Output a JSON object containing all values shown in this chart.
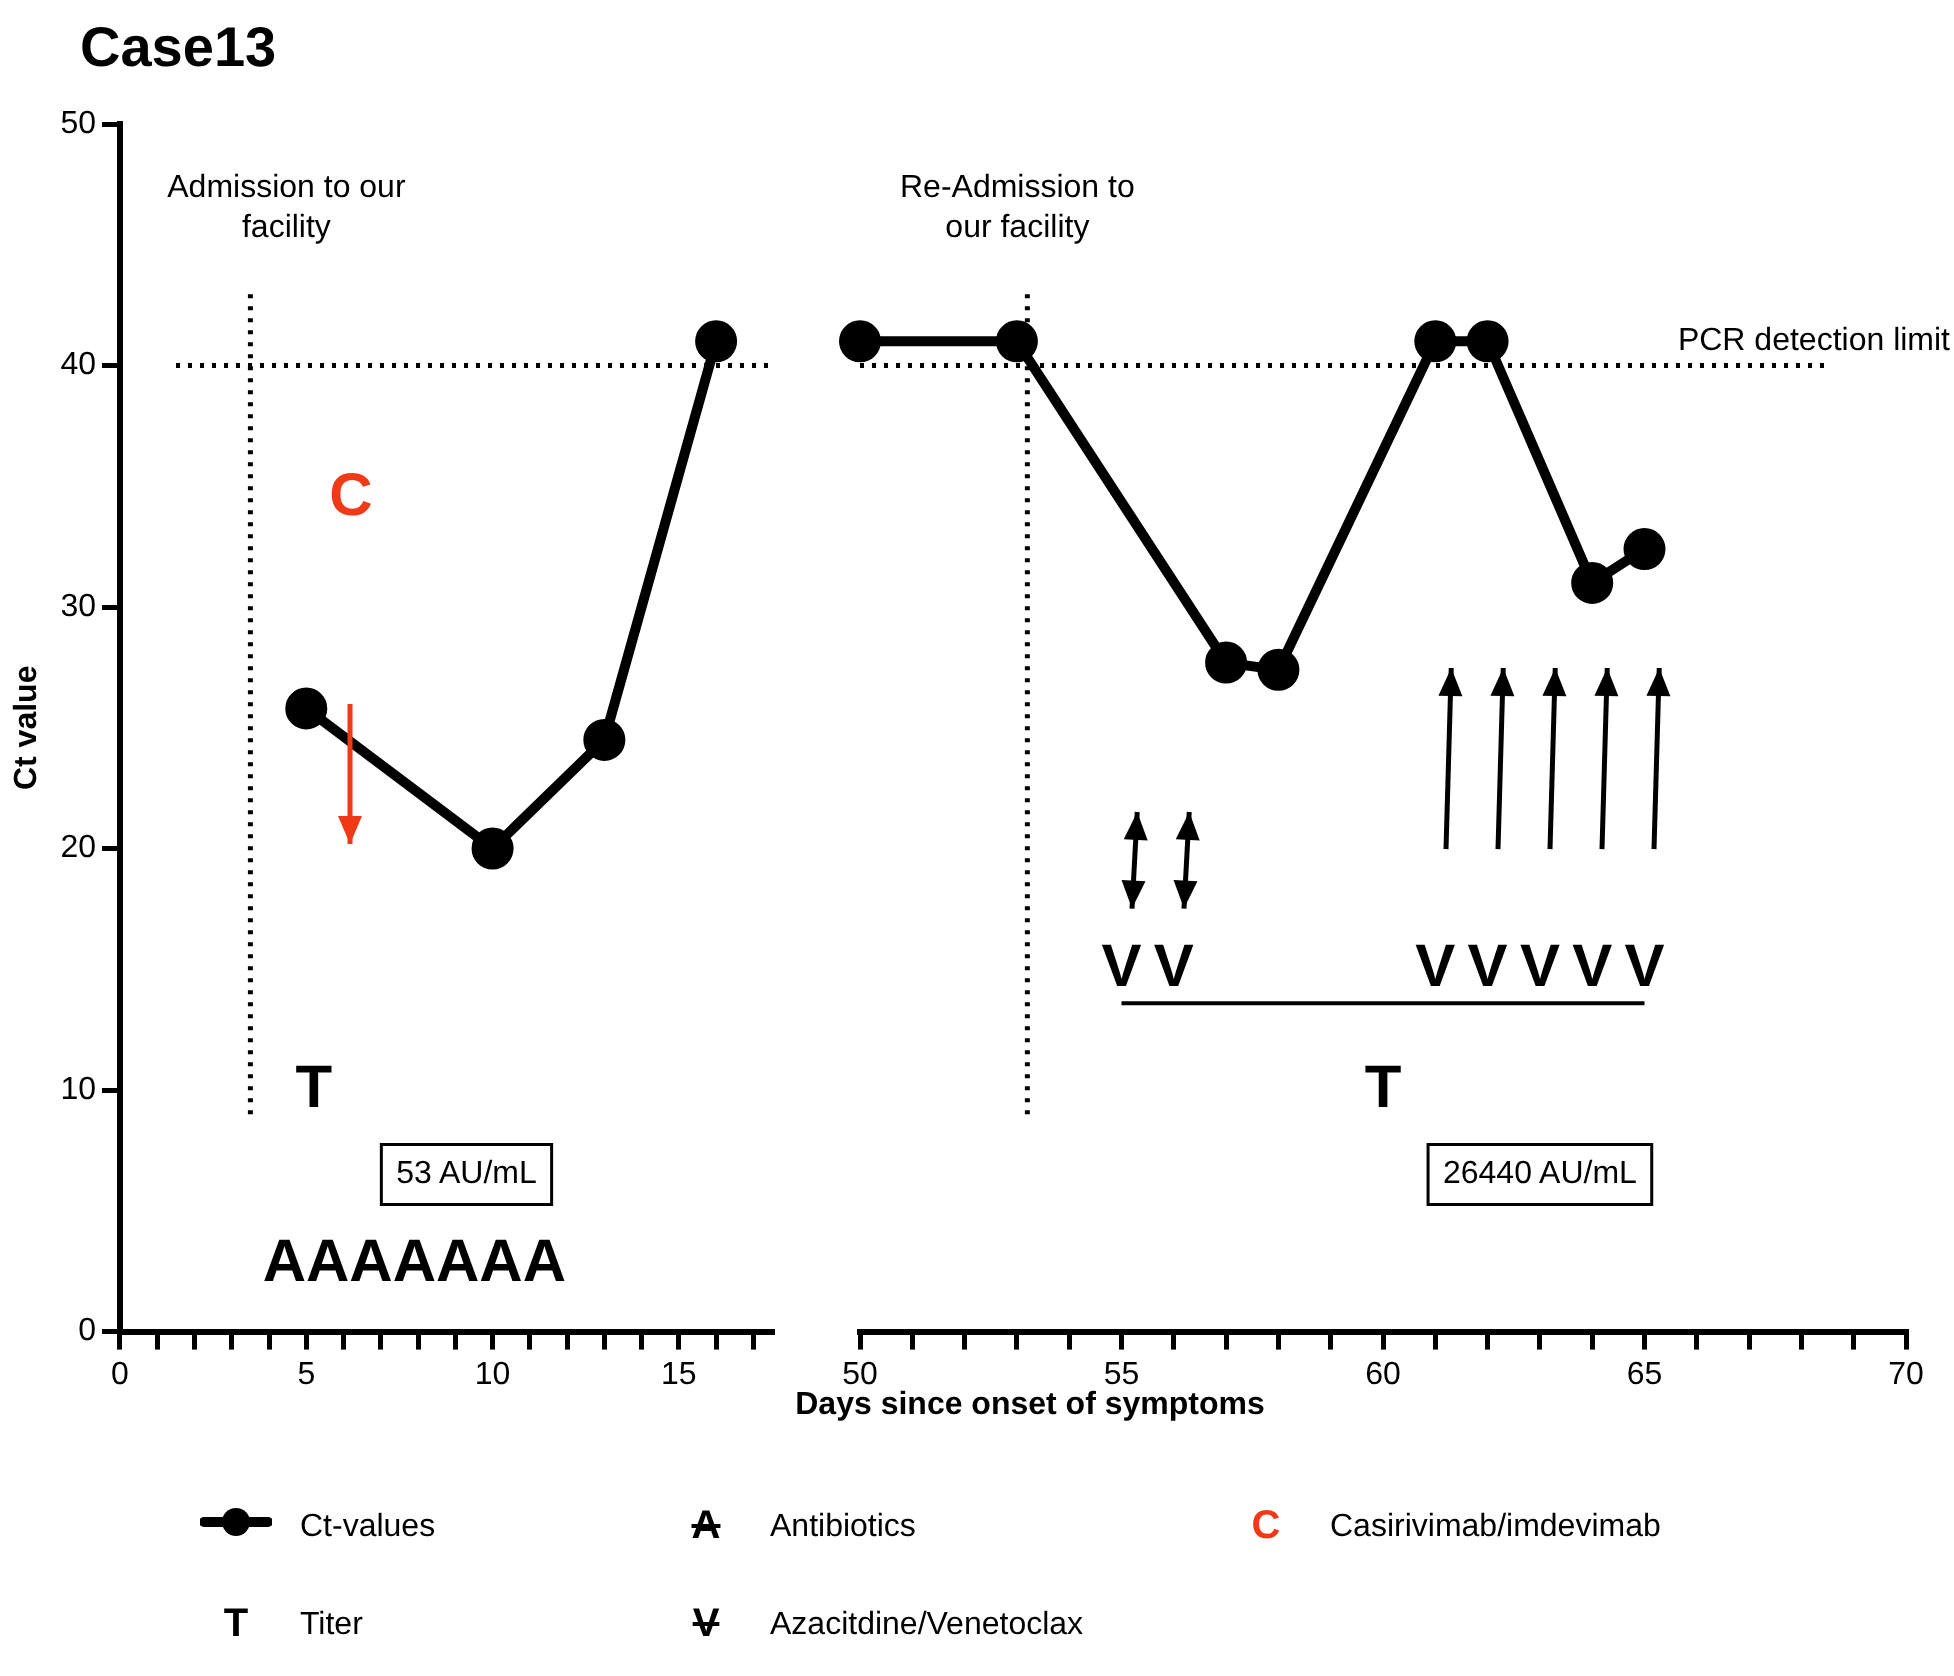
{
  "chart_data": [
    {
      "type": "line",
      "title": "Case13",
      "ylabel": "Ct value",
      "xlabel": "Days since onset of symptoms",
      "x": [
        5,
        10,
        13,
        16
      ],
      "series": [
        {
          "name": "Ct-values",
          "color": "#000000",
          "values": [
            25.8,
            20,
            24.5,
            41
          ]
        }
      ],
      "xlim": [
        0,
        17.5
      ],
      "xticks": [
        0,
        {
          "value": 1,
          "label": null
        },
        {
          "value": 2,
          "label": null
        },
        {
          "value": 3,
          "label": null
        },
        {
          "value": 4,
          "label": null
        },
        5,
        {
          "value": 6,
          "label": null
        },
        {
          "value": 7,
          "label": null
        },
        {
          "value": 8,
          "label": null
        },
        {
          "value": 9,
          "label": null
        },
        10,
        {
          "value": 11,
          "label": null
        },
        {
          "value": 12,
          "label": null
        },
        {
          "value": 13,
          "label": null
        },
        {
          "value": 14,
          "label": null
        },
        15,
        {
          "value": 16,
          "label": null
        },
        {
          "value": 17,
          "label": null
        }
      ],
      "ylim": [
        0,
        50
      ],
      "yticks": [
        0,
        10,
        20,
        30,
        40,
        50
      ],
      "grid": false,
      "marker": "circle",
      "legend": "bottom",
      "ref_lines": [
        {
          "axis": "y",
          "value": 40,
          "line_style": "dotted"
        },
        {
          "axis": "x",
          "value": 3.5,
          "label": "Admission to our facility",
          "line_style": "dotted"
        }
      ],
      "annotations": [
        "C",
        "T",
        "53 AU/mL",
        "AAAAAAA",
        "A",
        "Antibiotics",
        "C",
        "Casirivimab/imdevimab",
        "T",
        "Titer",
        "V",
        "Azacitdine/Venetoclax"
      ]
    },
    {
      "type": "line",
      "x": [
        50,
        53,
        57,
        58,
        61,
        62,
        64,
        65
      ],
      "series": [
        {
          "color": "#000000",
          "values": [
            41,
            41,
            27.7,
            27.4,
            41,
            41,
            31,
            32.4
          ]
        }
      ],
      "xlim": [
        50,
        70
      ],
      "xticks": [
        50,
        {
          "value": 51,
          "label": null
        },
        {
          "value": 52,
          "label": null
        },
        {
          "value": 53,
          "label": null
        },
        {
          "value": 54,
          "label": null
        },
        55,
        {
          "value": 56,
          "label": null
        },
        {
          "value": 57,
          "label": null
        },
        {
          "value": 58,
          "label": null
        },
        {
          "value": 59,
          "label": null
        },
        60,
        {
          "value": 61,
          "label": null
        },
        {
          "value": 62,
          "label": null
        },
        {
          "value": 63,
          "label": null
        },
        {
          "value": 64,
          "label": null
        },
        65,
        {
          "value": 66,
          "label": null
        },
        {
          "value": 67,
          "label": null
        },
        {
          "value": 68,
          "label": null
        },
        {
          "value": 69,
          "label": null
        },
        70
      ],
      "ylim": [
        0,
        50
      ],
      "tick_labels": "x",
      "grid": false,
      "marker": "circle",
      "ref_lines": [
        {
          "axis": "y",
          "value": 40,
          "label": "PCR detection limit",
          "line_style": "dotted"
        },
        {
          "axis": "x",
          "value": 53.2,
          "label": "Re-Admission to our facility",
          "line_style": "dotted"
        }
      ],
      "annotations": [
        "T",
        "26440 AU/mL",
        "V",
        "V",
        "V",
        "V",
        "V",
        "V",
        "V"
      ]
    }
  ]
}
